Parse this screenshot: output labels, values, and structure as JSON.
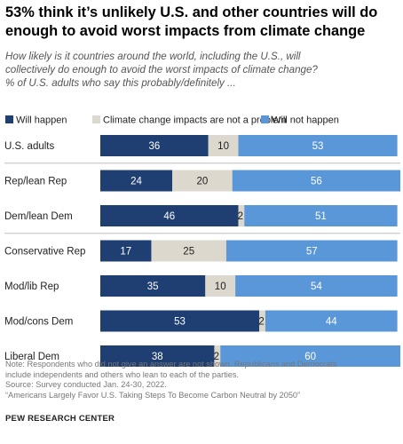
{
  "header": {
    "title_line1": "53% think it’s unlikely U.S. and other countries will do",
    "title_line2": "enough to avoid worst impacts from climate change",
    "subtitle_line1": "How likely is it countries around the world, including the U.S., will",
    "subtitle_line2": "collectively do enough to avoid the worst impacts of climate change?",
    "subtitle_line3": "% of U.S. adults who say this probably/definitely ..."
  },
  "chart_data": {
    "type": "bar",
    "orientation": "horizontal",
    "stacked": true,
    "categories": [
      "U.S. adults",
      "Rep/lean Rep",
      "Dem/lean Dem",
      "Conservative Rep",
      "Mod/lib Rep",
      "Mod/cons Dem",
      "Liberal Dem"
    ],
    "series": [
      {
        "name": "Will happen",
        "color": "#1f3f73",
        "label_color": "#ffffff",
        "values": [
          36,
          24,
          46,
          17,
          35,
          53,
          38
        ]
      },
      {
        "name": "Climate change impacts are not a problem",
        "color": "#dcd8cd",
        "label_color": "#222222",
        "values": [
          10,
          20,
          2,
          25,
          10,
          2,
          2
        ]
      },
      {
        "name": "Will not happen",
        "color": "#5a97d9",
        "label_color": "#ffffff",
        "values": [
          53,
          56,
          51,
          57,
          54,
          44,
          60
        ]
      }
    ],
    "legend_position": "top",
    "xlim": [
      0,
      100
    ],
    "grid": false,
    "group_dividers_after": [
      0,
      2
    ]
  },
  "footer": {
    "note_line1": "Note: Respondents who did not give an answer are not shown. Republicans and Democrats",
    "note_line2": "include independents and others who lean to each of the parties.",
    "source": "Source: Survey conducted Jan. 24-30, 2022.",
    "report": "“Americans Largely Favor U.S. Taking Steps To Become Carbon Neutral by 2050”",
    "org": "PEW RESEARCH CENTER"
  }
}
